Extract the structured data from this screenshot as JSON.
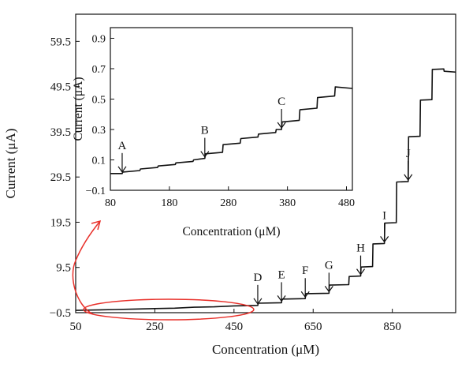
{
  "chart_data": [
    {
      "type": "line",
      "xlabel": "Concentration (μM)",
      "ylabel": "Current (μA)",
      "xlim": [
        50,
        1010
      ],
      "ylim": [
        -0.5,
        65.5
      ],
      "x_ticks": [
        50,
        250,
        450,
        650,
        850
      ],
      "y_ticks": [
        -0.5,
        9.5,
        19.5,
        29.5,
        39.5,
        49.5,
        59.5
      ],
      "tick_labels_x": [
        "50",
        "250",
        "450",
        "650",
        "850"
      ],
      "tick_labels_y": [
        "−0.5",
        "9.5",
        "19.5",
        "29.5",
        "39.5",
        "49.5",
        "59.5"
      ],
      "grid": false,
      "series": [
        {
          "x": [
            50,
            100,
            150,
            200,
            250,
            300,
            350,
            400,
            450,
            510,
            511,
            570,
            571,
            630,
            631,
            690,
            691,
            740,
            741,
            770,
            771,
            800,
            801,
            830,
            831,
            860,
            861,
            890,
            891,
            920,
            921,
            950,
            951,
            980,
            981,
            1010
          ],
          "y": [
            0.0,
            0.1,
            0.2,
            0.3,
            0.4,
            0.5,
            0.7,
            0.8,
            1.0,
            1.1,
            1.6,
            1.7,
            2.5,
            2.6,
            3.7,
            3.8,
            5.6,
            5.7,
            7.5,
            7.6,
            9.6,
            9.7,
            14.7,
            14.8,
            19.3,
            19.4,
            28.4,
            28.5,
            38.4,
            38.5,
            46.5,
            46.6,
            53.3,
            53.4,
            52.9,
            52.7
          ]
        }
      ],
      "annotations": [
        {
          "label": "D",
          "x": 510
        },
        {
          "label": "E",
          "x": 570
        },
        {
          "label": "F",
          "x": 630
        },
        {
          "label": "G",
          "x": 690
        },
        {
          "label": "H",
          "x": 770
        },
        {
          "label": "I",
          "x": 830
        },
        {
          "label": "J",
          "x": 890
        }
      ],
      "highlight": {
        "shape": "ellipse",
        "color": "#e8302a",
        "x_range": [
          70,
          500
        ],
        "points_to": "inset"
      }
    },
    {
      "type": "line",
      "inset": true,
      "xlabel": "Concentration (μM)",
      "ylabel": "Current (μA)",
      "xlim": [
        80,
        490
      ],
      "ylim": [
        -0.1,
        0.97
      ],
      "x_ticks": [
        80,
        180,
        280,
        380,
        480
      ],
      "y_ticks": [
        -0.1,
        0.1,
        0.3,
        0.5,
        0.7,
        0.9
      ],
      "tick_labels_x": [
        "80",
        "180",
        "280",
        "380",
        "480"
      ],
      "tick_labels_y": [
        "−0.1",
        "0.1",
        "0.3",
        "0.5",
        "0.7",
        "0.9"
      ],
      "grid": false,
      "series": [
        {
          "x": [
            80,
            100,
            101,
            130,
            131,
            160,
            161,
            190,
            191,
            220,
            221,
            240,
            241,
            270,
            271,
            300,
            301,
            330,
            331,
            360,
            361,
            370,
            371,
            400,
            401,
            430,
            431,
            460,
            461,
            490
          ],
          "y": [
            0.01,
            0.01,
            0.02,
            0.03,
            0.04,
            0.05,
            0.06,
            0.07,
            0.08,
            0.09,
            0.1,
            0.11,
            0.14,
            0.15,
            0.2,
            0.21,
            0.24,
            0.25,
            0.27,
            0.28,
            0.3,
            0.3,
            0.35,
            0.36,
            0.43,
            0.44,
            0.51,
            0.52,
            0.58,
            0.57
          ]
        }
      ],
      "annotations": [
        {
          "label": "A",
          "x": 100
        },
        {
          "label": "B",
          "x": 240
        },
        {
          "label": "C",
          "x": 370
        }
      ]
    }
  ]
}
